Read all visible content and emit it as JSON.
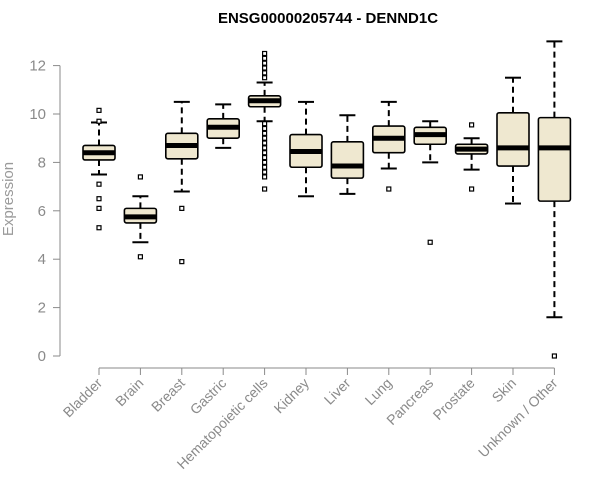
{
  "chart_data": {
    "type": "boxplot",
    "title": "ENSG00000205744 - DENND1C",
    "ylabel": "Expression",
    "xlabel": "",
    "ylim": [
      0,
      13
    ],
    "yticks": [
      0,
      2,
      4,
      6,
      8,
      10,
      12
    ],
    "grid": false,
    "box_fill": "#efe8d0",
    "box_stroke": "#000000",
    "categories": [
      "Bladder",
      "Brain",
      "Breast",
      "Gastric",
      "Hematopoietic cells",
      "Kidney",
      "Liver",
      "Lung",
      "Pancreas",
      "Prostate",
      "Skin",
      "Unknown / Other"
    ],
    "boxes": [
      {
        "q1": 8.1,
        "median": 8.4,
        "q3": 8.7,
        "whisker_low": 7.5,
        "whisker_high": 9.65,
        "outliers": [
          10.15,
          9.7,
          7.1,
          6.5,
          6.1,
          5.3
        ]
      },
      {
        "q1": 5.5,
        "median": 5.75,
        "q3": 6.1,
        "whisker_low": 4.7,
        "whisker_high": 6.6,
        "outliers": [
          7.4,
          4.1
        ]
      },
      {
        "q1": 8.15,
        "median": 8.7,
        "q3": 9.2,
        "whisker_low": 6.8,
        "whisker_high": 10.5,
        "outliers": [
          6.1,
          3.9
        ]
      },
      {
        "q1": 9.0,
        "median": 9.45,
        "q3": 9.8,
        "whisker_low": 8.6,
        "whisker_high": 10.4,
        "outliers": []
      },
      {
        "q1": 10.3,
        "median": 10.55,
        "q3": 10.75,
        "whisker_low": 9.7,
        "whisker_high": 11.3,
        "outliers": [
          12.5,
          12.3,
          12.1,
          11.9,
          11.7,
          11.5,
          9.6,
          9.4,
          9.2,
          9.0,
          8.8,
          8.6,
          8.4,
          8.2,
          8.0,
          7.8,
          7.6,
          7.4,
          6.9
        ]
      },
      {
        "q1": 7.8,
        "median": 8.45,
        "q3": 9.15,
        "whisker_low": 6.6,
        "whisker_high": 10.5,
        "outliers": []
      },
      {
        "q1": 7.35,
        "median": 7.85,
        "q3": 8.85,
        "whisker_low": 6.7,
        "whisker_high": 9.95,
        "outliers": []
      },
      {
        "q1": 8.4,
        "median": 9.0,
        "q3": 9.5,
        "whisker_low": 7.75,
        "whisker_high": 10.5,
        "outliers": [
          6.9
        ]
      },
      {
        "q1": 8.75,
        "median": 9.15,
        "q3": 9.45,
        "whisker_low": 8.0,
        "whisker_high": 9.7,
        "outliers": [
          4.7
        ]
      },
      {
        "q1": 8.35,
        "median": 8.55,
        "q3": 8.75,
        "whisker_low": 7.7,
        "whisker_high": 9.0,
        "outliers": [
          9.55,
          6.9
        ]
      },
      {
        "q1": 7.85,
        "median": 8.6,
        "q3": 10.05,
        "whisker_low": 6.3,
        "whisker_high": 11.5,
        "outliers": []
      },
      {
        "q1": 6.4,
        "median": 8.6,
        "q3": 9.85,
        "whisker_low": 1.6,
        "whisker_high": 13.0,
        "outliers": [
          0.0
        ]
      }
    ]
  }
}
